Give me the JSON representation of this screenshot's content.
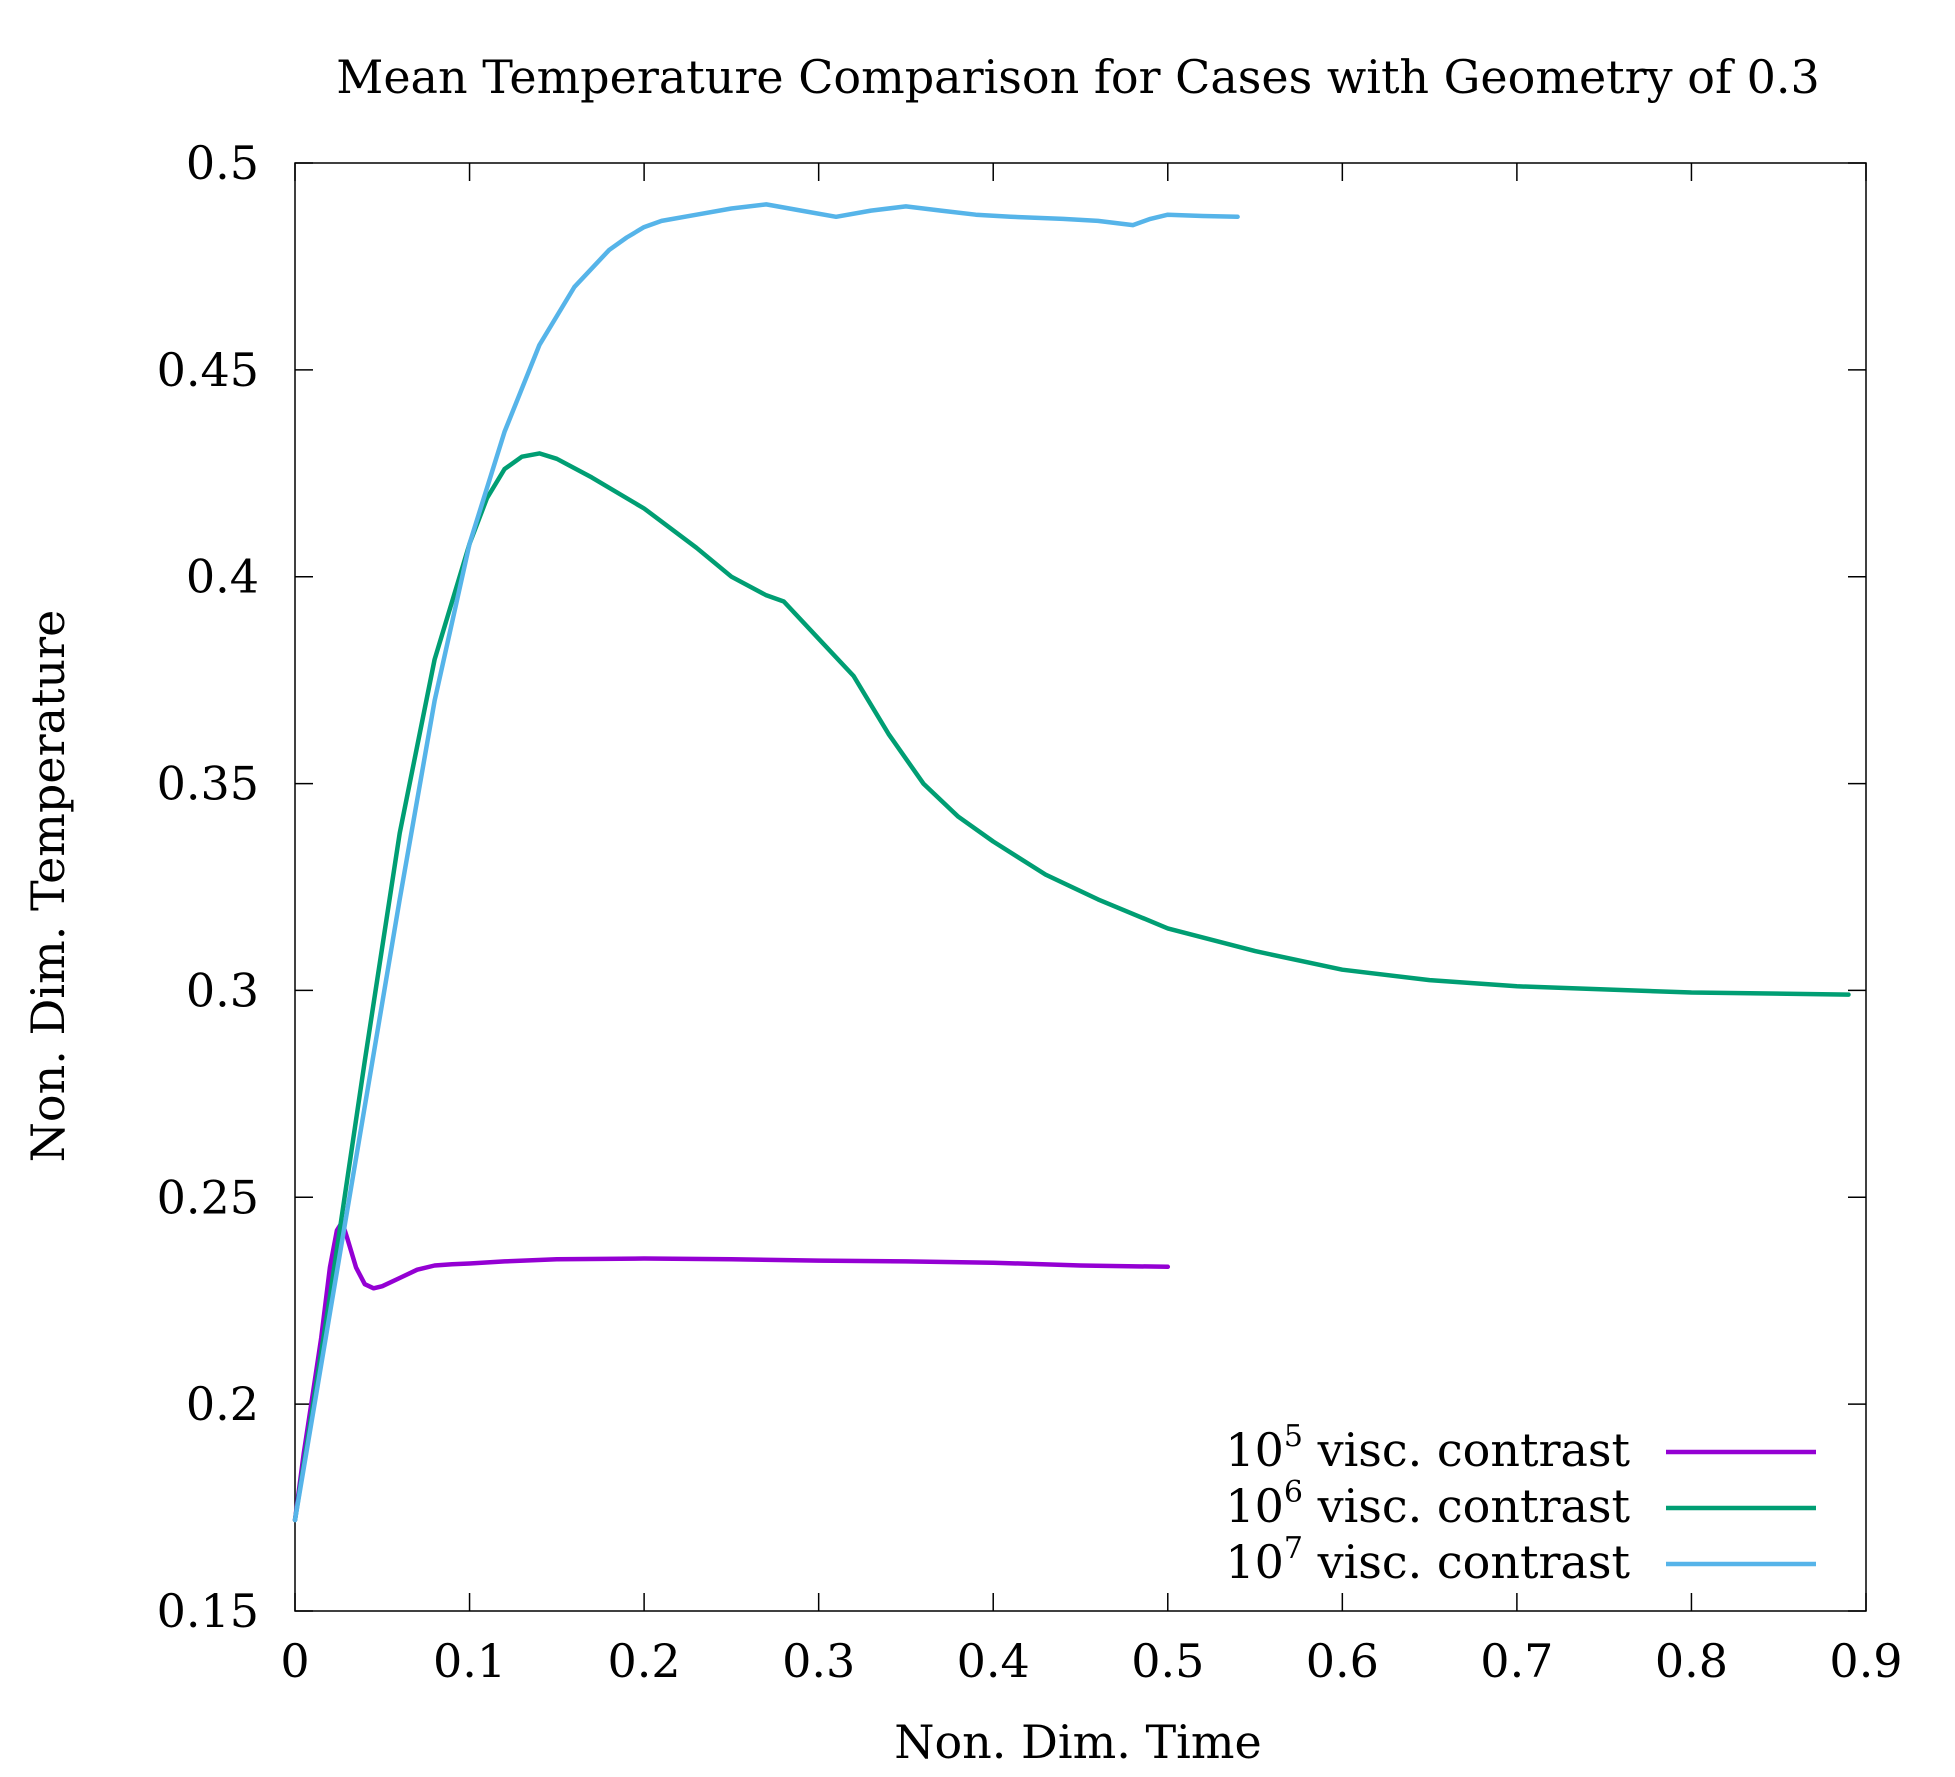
{
  "chart_data": {
    "type": "line",
    "title": "Mean Temperature Comparison for Cases with Geometry of 0.3",
    "xlabel": "Non. Dim. Time",
    "ylabel": "Non. Dim. Temperature",
    "xlim": [
      0,
      0.9
    ],
    "ylim": [
      0.15,
      0.5
    ],
    "xticks": [
      0,
      0.1,
      0.2,
      0.3,
      0.4,
      0.5,
      0.6,
      0.7,
      0.8,
      0.9
    ],
    "xtick_labels": [
      "0",
      "0.1",
      "0.2",
      "0.3",
      "0.4",
      "0.5",
      "0.6",
      "0.7",
      "0.8",
      "0.9"
    ],
    "yticks": [
      0.15,
      0.2,
      0.25,
      0.3,
      0.35,
      0.4,
      0.45,
      0.5
    ],
    "ytick_labels": [
      "0.15",
      "0.2",
      "0.25",
      "0.3",
      "0.35",
      "0.4",
      "0.45",
      "0.5"
    ],
    "grid": false,
    "legend_position": "bottom-right",
    "series": [
      {
        "name": "10^5 visc. contrast",
        "legend_base": "10",
        "legend_exp": "5",
        "legend_text": " visc. contrast",
        "color": "#9400D3",
        "x": [
          0,
          0.005,
          0.01,
          0.015,
          0.02,
          0.024,
          0.027,
          0.03,
          0.035,
          0.04,
          0.045,
          0.05,
          0.06,
          0.07,
          0.08,
          0.09,
          0.1,
          0.12,
          0.15,
          0.2,
          0.25,
          0.3,
          0.35,
          0.4,
          0.45,
          0.5
        ],
        "y": [
          0.172,
          0.188,
          0.202,
          0.216,
          0.233,
          0.242,
          0.244,
          0.24,
          0.233,
          0.229,
          0.228,
          0.2285,
          0.2305,
          0.2325,
          0.2335,
          0.2338,
          0.234,
          0.2345,
          0.235,
          0.2352,
          0.235,
          0.2347,
          0.2345,
          0.2342,
          0.2335,
          0.2332
        ]
      },
      {
        "name": "10^6 visc. contrast",
        "legend_base": "10",
        "legend_exp": "6",
        "legend_text": " visc. contrast",
        "color": "#009E73",
        "x": [
          0,
          0.02,
          0.04,
          0.06,
          0.08,
          0.1,
          0.11,
          0.12,
          0.13,
          0.14,
          0.15,
          0.17,
          0.2,
          0.23,
          0.25,
          0.27,
          0.28,
          0.3,
          0.32,
          0.34,
          0.36,
          0.38,
          0.4,
          0.43,
          0.46,
          0.5,
          0.55,
          0.6,
          0.65,
          0.7,
          0.8,
          0.89
        ],
        "y": [
          0.172,
          0.226,
          0.283,
          0.338,
          0.38,
          0.408,
          0.419,
          0.426,
          0.429,
          0.4298,
          0.4285,
          0.424,
          0.4165,
          0.407,
          0.4,
          0.3955,
          0.394,
          0.385,
          0.376,
          0.362,
          0.35,
          0.342,
          0.336,
          0.328,
          0.322,
          0.315,
          0.3095,
          0.305,
          0.3025,
          0.301,
          0.2995,
          0.299
        ]
      },
      {
        "name": "10^7 visc. contrast",
        "legend_base": "10",
        "legend_exp": "7",
        "legend_text": " visc. contrast",
        "color": "#56B4E9",
        "x": [
          0,
          0.02,
          0.04,
          0.06,
          0.08,
          0.1,
          0.12,
          0.14,
          0.16,
          0.18,
          0.19,
          0.2,
          0.21,
          0.23,
          0.25,
          0.27,
          0.29,
          0.31,
          0.33,
          0.35,
          0.37,
          0.39,
          0.41,
          0.44,
          0.46,
          0.48,
          0.49,
          0.5,
          0.52,
          0.54
        ],
        "y": [
          0.172,
          0.222,
          0.272,
          0.322,
          0.37,
          0.408,
          0.435,
          0.456,
          0.47,
          0.479,
          0.482,
          0.4845,
          0.486,
          0.4875,
          0.489,
          0.49,
          0.4885,
          0.487,
          0.4885,
          0.4895,
          0.4885,
          0.4875,
          0.487,
          0.4865,
          0.486,
          0.485,
          0.4865,
          0.4875,
          0.4872,
          0.487
        ]
      }
    ]
  }
}
